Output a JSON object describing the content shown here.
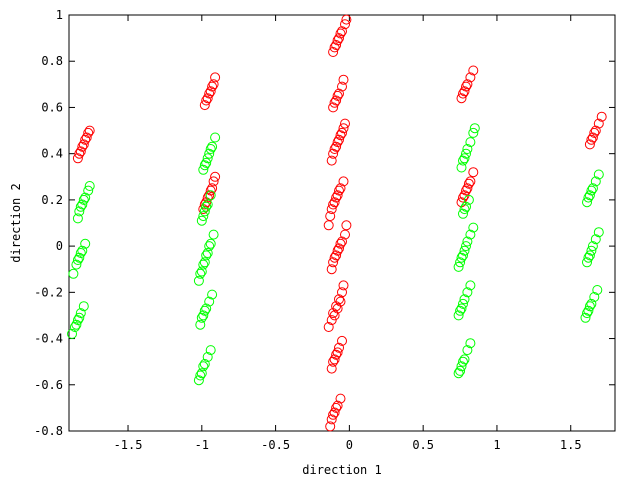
{
  "chart_data": {
    "type": "scatter",
    "title": "",
    "xlabel": "direction 1",
    "ylabel": "direction 2",
    "xlim": [
      -1.9,
      1.8
    ],
    "ylim": [
      -0.8,
      1.0
    ],
    "xticks": [
      -1.5,
      -1,
      -0.5,
      0,
      0.5,
      1,
      1.5
    ],
    "xtick_labels": [
      "-1.5",
      "-1",
      "-0.5",
      "0",
      "0.5",
      "1",
      "1.5"
    ],
    "yticks": [
      -0.8,
      -0.6,
      -0.4,
      -0.2,
      0,
      0.2,
      0.4,
      0.6,
      0.8,
      1
    ],
    "ytick_labels": [
      "-0.8",
      "-0.6",
      "-0.4",
      "-0.2",
      "0",
      "0.2",
      "0.4",
      "0.6",
      "0.8",
      "1"
    ],
    "grid": false,
    "legend": false,
    "marker": "open-circle",
    "series": [
      {
        "color": "#ff0000",
        "points": [
          [
            -1.84,
            0.38
          ],
          [
            -1.82,
            0.41
          ],
          [
            -1.8,
            0.44
          ],
          [
            -1.78,
            0.47
          ],
          [
            -1.76,
            0.5
          ],
          [
            -1.83,
            0.4
          ],
          [
            -1.79,
            0.46
          ],
          [
            -1.81,
            0.43
          ],
          [
            -1.77,
            0.49
          ],
          [
            -0.98,
            0.61
          ],
          [
            -0.96,
            0.64
          ],
          [
            -0.94,
            0.67
          ],
          [
            -0.92,
            0.7
          ],
          [
            -0.91,
            0.73
          ],
          [
            -0.97,
            0.63
          ],
          [
            -0.95,
            0.66
          ],
          [
            -0.93,
            0.69
          ],
          [
            -0.99,
            0.16
          ],
          [
            -0.97,
            0.19
          ],
          [
            -0.95,
            0.22
          ],
          [
            -0.93,
            0.25
          ],
          [
            -0.92,
            0.28
          ],
          [
            -0.91,
            0.3
          ],
          [
            -0.98,
            0.18
          ],
          [
            -0.96,
            0.21
          ],
          [
            -0.94,
            0.24
          ],
          [
            -0.11,
            0.84
          ],
          [
            -0.09,
            0.87
          ],
          [
            -0.07,
            0.9
          ],
          [
            -0.05,
            0.93
          ],
          [
            -0.03,
            0.96
          ],
          [
            -0.02,
            0.98
          ],
          [
            -0.1,
            0.86
          ],
          [
            -0.08,
            0.89
          ],
          [
            -0.06,
            0.92
          ],
          [
            -0.11,
            0.6
          ],
          [
            -0.09,
            0.63
          ],
          [
            -0.07,
            0.66
          ],
          [
            -0.05,
            0.69
          ],
          [
            -0.04,
            0.72
          ],
          [
            -0.1,
            0.62
          ],
          [
            -0.08,
            0.65
          ],
          [
            -0.12,
            0.37
          ],
          [
            -0.11,
            0.4
          ],
          [
            -0.09,
            0.43
          ],
          [
            -0.07,
            0.46
          ],
          [
            -0.05,
            0.49
          ],
          [
            -0.03,
            0.53
          ],
          [
            -0.1,
            0.42
          ],
          [
            -0.08,
            0.45
          ],
          [
            -0.06,
            0.48
          ],
          [
            -0.04,
            0.51
          ],
          [
            -0.13,
            0.13
          ],
          [
            -0.12,
            0.16
          ],
          [
            -0.1,
            0.19
          ],
          [
            -0.08,
            0.22
          ],
          [
            -0.06,
            0.25
          ],
          [
            -0.04,
            0.28
          ],
          [
            -0.11,
            0.18
          ],
          [
            -0.09,
            0.21
          ],
          [
            -0.07,
            0.24
          ],
          [
            -0.14,
            0.09
          ],
          [
            -0.12,
            -0.1
          ],
          [
            -0.11,
            -0.07
          ],
          [
            -0.09,
            -0.04
          ],
          [
            -0.07,
            -0.01
          ],
          [
            -0.05,
            0.02
          ],
          [
            -0.03,
            0.05
          ],
          [
            -0.02,
            0.09
          ],
          [
            -0.1,
            -0.05
          ],
          [
            -0.08,
            -0.02
          ],
          [
            -0.06,
            0.01
          ],
          [
            -0.14,
            -0.35
          ],
          [
            -0.12,
            -0.32
          ],
          [
            -0.11,
            -0.29
          ],
          [
            -0.09,
            -0.26
          ],
          [
            -0.07,
            -0.23
          ],
          [
            -0.05,
            -0.2
          ],
          [
            -0.04,
            -0.17
          ],
          [
            -0.1,
            -0.3
          ],
          [
            -0.08,
            -0.27
          ],
          [
            -0.06,
            -0.24
          ],
          [
            -0.12,
            -0.53
          ],
          [
            -0.11,
            -0.5
          ],
          [
            -0.09,
            -0.47
          ],
          [
            -0.07,
            -0.44
          ],
          [
            -0.05,
            -0.41
          ],
          [
            -0.1,
            -0.49
          ],
          [
            -0.08,
            -0.46
          ],
          [
            -0.13,
            -0.78
          ],
          [
            -0.12,
            -0.75
          ],
          [
            -0.1,
            -0.72
          ],
          [
            -0.08,
            -0.69
          ],
          [
            -0.06,
            -0.66
          ],
          [
            -0.11,
            -0.73
          ],
          [
            -0.09,
            -0.7
          ],
          [
            0.76,
            0.64
          ],
          [
            0.78,
            0.67
          ],
          [
            0.8,
            0.7
          ],
          [
            0.82,
            0.73
          ],
          [
            0.84,
            0.76
          ],
          [
            0.77,
            0.66
          ],
          [
            0.79,
            0.69
          ],
          [
            0.76,
            0.19
          ],
          [
            0.78,
            0.22
          ],
          [
            0.8,
            0.25
          ],
          [
            0.82,
            0.28
          ],
          [
            0.84,
            0.32
          ],
          [
            0.77,
            0.21
          ],
          [
            0.79,
            0.24
          ],
          [
            0.81,
            0.27
          ],
          [
            1.63,
            0.44
          ],
          [
            1.65,
            0.47
          ],
          [
            1.67,
            0.5
          ],
          [
            1.69,
            0.53
          ],
          [
            1.71,
            0.56
          ],
          [
            1.64,
            0.46
          ],
          [
            1.66,
            0.49
          ]
        ]
      },
      {
        "color": "#00ff00",
        "points": [
          [
            -1.84,
            0.12
          ],
          [
            -1.83,
            0.15
          ],
          [
            -1.81,
            0.18
          ],
          [
            -1.79,
            0.21
          ],
          [
            -1.77,
            0.24
          ],
          [
            -1.76,
            0.26
          ],
          [
            -1.82,
            0.17
          ],
          [
            -1.8,
            0.2
          ],
          [
            -1.87,
            -0.12
          ],
          [
            -1.85,
            -0.08
          ],
          [
            -1.83,
            -0.05
          ],
          [
            -1.81,
            -0.02
          ],
          [
            -1.79,
            0.01
          ],
          [
            -1.84,
            -0.06
          ],
          [
            -1.82,
            -0.03
          ],
          [
            -1.88,
            -0.38
          ],
          [
            -1.86,
            -0.35
          ],
          [
            -1.84,
            -0.32
          ],
          [
            -1.82,
            -0.29
          ],
          [
            -1.8,
            -0.26
          ],
          [
            -1.85,
            -0.34
          ],
          [
            -1.83,
            -0.31
          ],
          [
            -0.99,
            0.33
          ],
          [
            -0.97,
            0.36
          ],
          [
            -0.95,
            0.4
          ],
          [
            -0.93,
            0.43
          ],
          [
            -0.91,
            0.47
          ],
          [
            -0.98,
            0.35
          ],
          [
            -0.96,
            0.38
          ],
          [
            -0.94,
            0.42
          ],
          [
            -1.0,
            0.11
          ],
          [
            -0.98,
            0.15
          ],
          [
            -0.96,
            0.18
          ],
          [
            -0.94,
            0.22
          ],
          [
            -0.99,
            0.13
          ],
          [
            -0.97,
            0.17
          ],
          [
            -1.02,
            -0.15
          ],
          [
            -1.0,
            -0.11
          ],
          [
            -0.98,
            -0.07
          ],
          [
            -0.96,
            -0.03
          ],
          [
            -0.94,
            0.01
          ],
          [
            -0.92,
            0.05
          ],
          [
            -1.01,
            -0.12
          ],
          [
            -0.99,
            -0.08
          ],
          [
            -0.97,
            -0.04
          ],
          [
            -0.95,
            0.0
          ],
          [
            -1.01,
            -0.34
          ],
          [
            -0.99,
            -0.3
          ],
          [
            -0.97,
            -0.27
          ],
          [
            -0.95,
            -0.24
          ],
          [
            -0.93,
            -0.21
          ],
          [
            -1.0,
            -0.31
          ],
          [
            -0.98,
            -0.28
          ],
          [
            -1.02,
            -0.58
          ],
          [
            -1.0,
            -0.55
          ],
          [
            -0.98,
            -0.51
          ],
          [
            -0.96,
            -0.48
          ],
          [
            -0.94,
            -0.45
          ],
          [
            -1.01,
            -0.56
          ],
          [
            -0.99,
            -0.52
          ],
          [
            0.76,
            0.34
          ],
          [
            0.78,
            0.38
          ],
          [
            0.8,
            0.42
          ],
          [
            0.82,
            0.45
          ],
          [
            0.84,
            0.49
          ],
          [
            0.85,
            0.51
          ],
          [
            0.77,
            0.37
          ],
          [
            0.79,
            0.4
          ],
          [
            0.77,
            0.14
          ],
          [
            0.79,
            0.17
          ],
          [
            0.81,
            0.2
          ],
          [
            0.78,
            0.16
          ],
          [
            0.74,
            -0.09
          ],
          [
            0.76,
            -0.05
          ],
          [
            0.78,
            -0.02
          ],
          [
            0.8,
            0.02
          ],
          [
            0.82,
            0.05
          ],
          [
            0.84,
            0.08
          ],
          [
            0.75,
            -0.07
          ],
          [
            0.77,
            -0.04
          ],
          [
            0.79,
            0.0
          ],
          [
            0.74,
            -0.3
          ],
          [
            0.76,
            -0.27
          ],
          [
            0.78,
            -0.23
          ],
          [
            0.8,
            -0.2
          ],
          [
            0.82,
            -0.17
          ],
          [
            0.75,
            -0.28
          ],
          [
            0.77,
            -0.25
          ],
          [
            0.74,
            -0.55
          ],
          [
            0.76,
            -0.52
          ],
          [
            0.78,
            -0.49
          ],
          [
            0.8,
            -0.45
          ],
          [
            0.82,
            -0.42
          ],
          [
            0.75,
            -0.54
          ],
          [
            0.77,
            -0.5
          ],
          [
            1.61,
            0.19
          ],
          [
            1.63,
            0.22
          ],
          [
            1.65,
            0.25
          ],
          [
            1.67,
            0.28
          ],
          [
            1.69,
            0.31
          ],
          [
            1.62,
            0.21
          ],
          [
            1.64,
            0.24
          ],
          [
            1.61,
            -0.07
          ],
          [
            1.63,
            -0.04
          ],
          [
            1.65,
            0.0
          ],
          [
            1.67,
            0.03
          ],
          [
            1.69,
            0.06
          ],
          [
            1.62,
            -0.05
          ],
          [
            1.64,
            -0.02
          ],
          [
            1.6,
            -0.31
          ],
          [
            1.62,
            -0.28
          ],
          [
            1.64,
            -0.25
          ],
          [
            1.66,
            -0.22
          ],
          [
            1.68,
            -0.19
          ],
          [
            1.61,
            -0.29
          ],
          [
            1.63,
            -0.26
          ]
        ]
      }
    ]
  }
}
